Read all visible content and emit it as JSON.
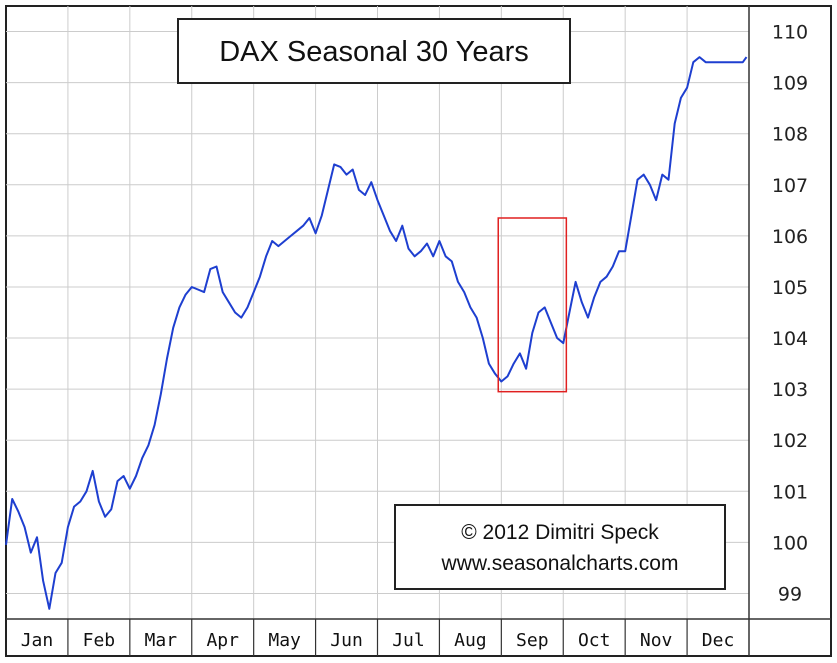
{
  "chart_data": {
    "type": "line",
    "title": "DAX Seasonal 30 Years",
    "credit": {
      "line1": "© 2012  Dimitri Speck",
      "line2": "www.seasonalcharts.com"
    },
    "x_categories": [
      "Jan",
      "Feb",
      "Mar",
      "Apr",
      "May",
      "Jun",
      "Jul",
      "Aug",
      "Sep",
      "Oct",
      "Nov",
      "Dec"
    ],
    "y_ticks": [
      99,
      100,
      101,
      102,
      103,
      104,
      105,
      106,
      107,
      108,
      109,
      110
    ],
    "ylim": [
      98.5,
      110.5
    ],
    "xlim": [
      0,
      12
    ],
    "grid": true,
    "series": [
      {
        "color": "#1e3fd0",
        "x": [
          0.0,
          0.1,
          0.2,
          0.3,
          0.4,
          0.5,
          0.6,
          0.7,
          0.8,
          0.9,
          1.0,
          1.1,
          1.2,
          1.3,
          1.4,
          1.5,
          1.6,
          1.7,
          1.8,
          1.9,
          2.0,
          2.1,
          2.2,
          2.3,
          2.4,
          2.5,
          2.6,
          2.7,
          2.8,
          2.9,
          3.0,
          3.1,
          3.2,
          3.3,
          3.4,
          3.5,
          3.6,
          3.7,
          3.8,
          3.9,
          4.0,
          4.1,
          4.2,
          4.3,
          4.4,
          4.5,
          4.6,
          4.7,
          4.8,
          4.9,
          5.0,
          5.1,
          5.2,
          5.3,
          5.4,
          5.5,
          5.6,
          5.7,
          5.8,
          5.9,
          6.0,
          6.1,
          6.2,
          6.3,
          6.4,
          6.5,
          6.6,
          6.7,
          6.8,
          6.9,
          7.0,
          7.1,
          7.2,
          7.3,
          7.4,
          7.5,
          7.6,
          7.7,
          7.8,
          7.9,
          8.0,
          8.1,
          8.2,
          8.3,
          8.4,
          8.5,
          8.6,
          8.7,
          8.8,
          8.9,
          9.0,
          9.1,
          9.2,
          9.3,
          9.4,
          9.5,
          9.6,
          9.7,
          9.8,
          9.9,
          10.0,
          10.1,
          10.2,
          10.3,
          10.4,
          10.5,
          10.6,
          10.7,
          10.8,
          10.9,
          11.0,
          11.1,
          11.2,
          11.3,
          11.4,
          11.5,
          11.6,
          11.7,
          11.8,
          11.9,
          11.96
        ],
        "values": [
          99.95,
          100.85,
          100.6,
          100.3,
          99.8,
          100.1,
          99.25,
          98.7,
          99.4,
          99.6,
          100.3,
          100.7,
          100.8,
          101.0,
          101.4,
          100.8,
          100.5,
          100.65,
          101.2,
          101.3,
          101.05,
          101.3,
          101.65,
          101.9,
          102.3,
          102.9,
          103.6,
          104.2,
          104.6,
          104.85,
          105.0,
          104.95,
          104.9,
          105.35,
          105.4,
          104.9,
          104.7,
          104.5,
          104.4,
          104.6,
          104.9,
          105.2,
          105.6,
          105.9,
          105.8,
          105.9,
          106.0,
          106.1,
          106.2,
          106.35,
          106.05,
          106.4,
          106.9,
          107.4,
          107.35,
          107.2,
          107.3,
          106.9,
          106.8,
          107.05,
          106.7,
          106.4,
          106.1,
          105.9,
          106.2,
          105.75,
          105.6,
          105.7,
          105.85,
          105.6,
          105.9,
          105.6,
          105.5,
          105.1,
          104.9,
          104.6,
          104.4,
          104.0,
          103.5,
          103.3,
          103.15,
          103.25,
          103.5,
          103.7,
          103.4,
          104.1,
          104.5,
          104.6,
          104.3,
          104.0,
          103.9,
          104.5,
          105.1,
          104.7,
          104.4,
          104.8,
          105.1,
          105.2,
          105.4,
          105.7,
          105.7,
          106.4,
          107.1,
          107.2,
          107.0,
          106.7,
          107.2,
          107.1,
          108.2,
          108.7,
          108.9,
          109.4,
          109.5,
          109.4,
          109.4,
          109.4,
          109.4,
          109.4,
          109.4,
          109.4,
          109.5
        ]
      }
    ],
    "annotation": {
      "type": "rectangle",
      "color": "#e02020",
      "x_range": [
        7.95,
        9.05
      ],
      "y_range": [
        102.95,
        106.35
      ]
    }
  }
}
